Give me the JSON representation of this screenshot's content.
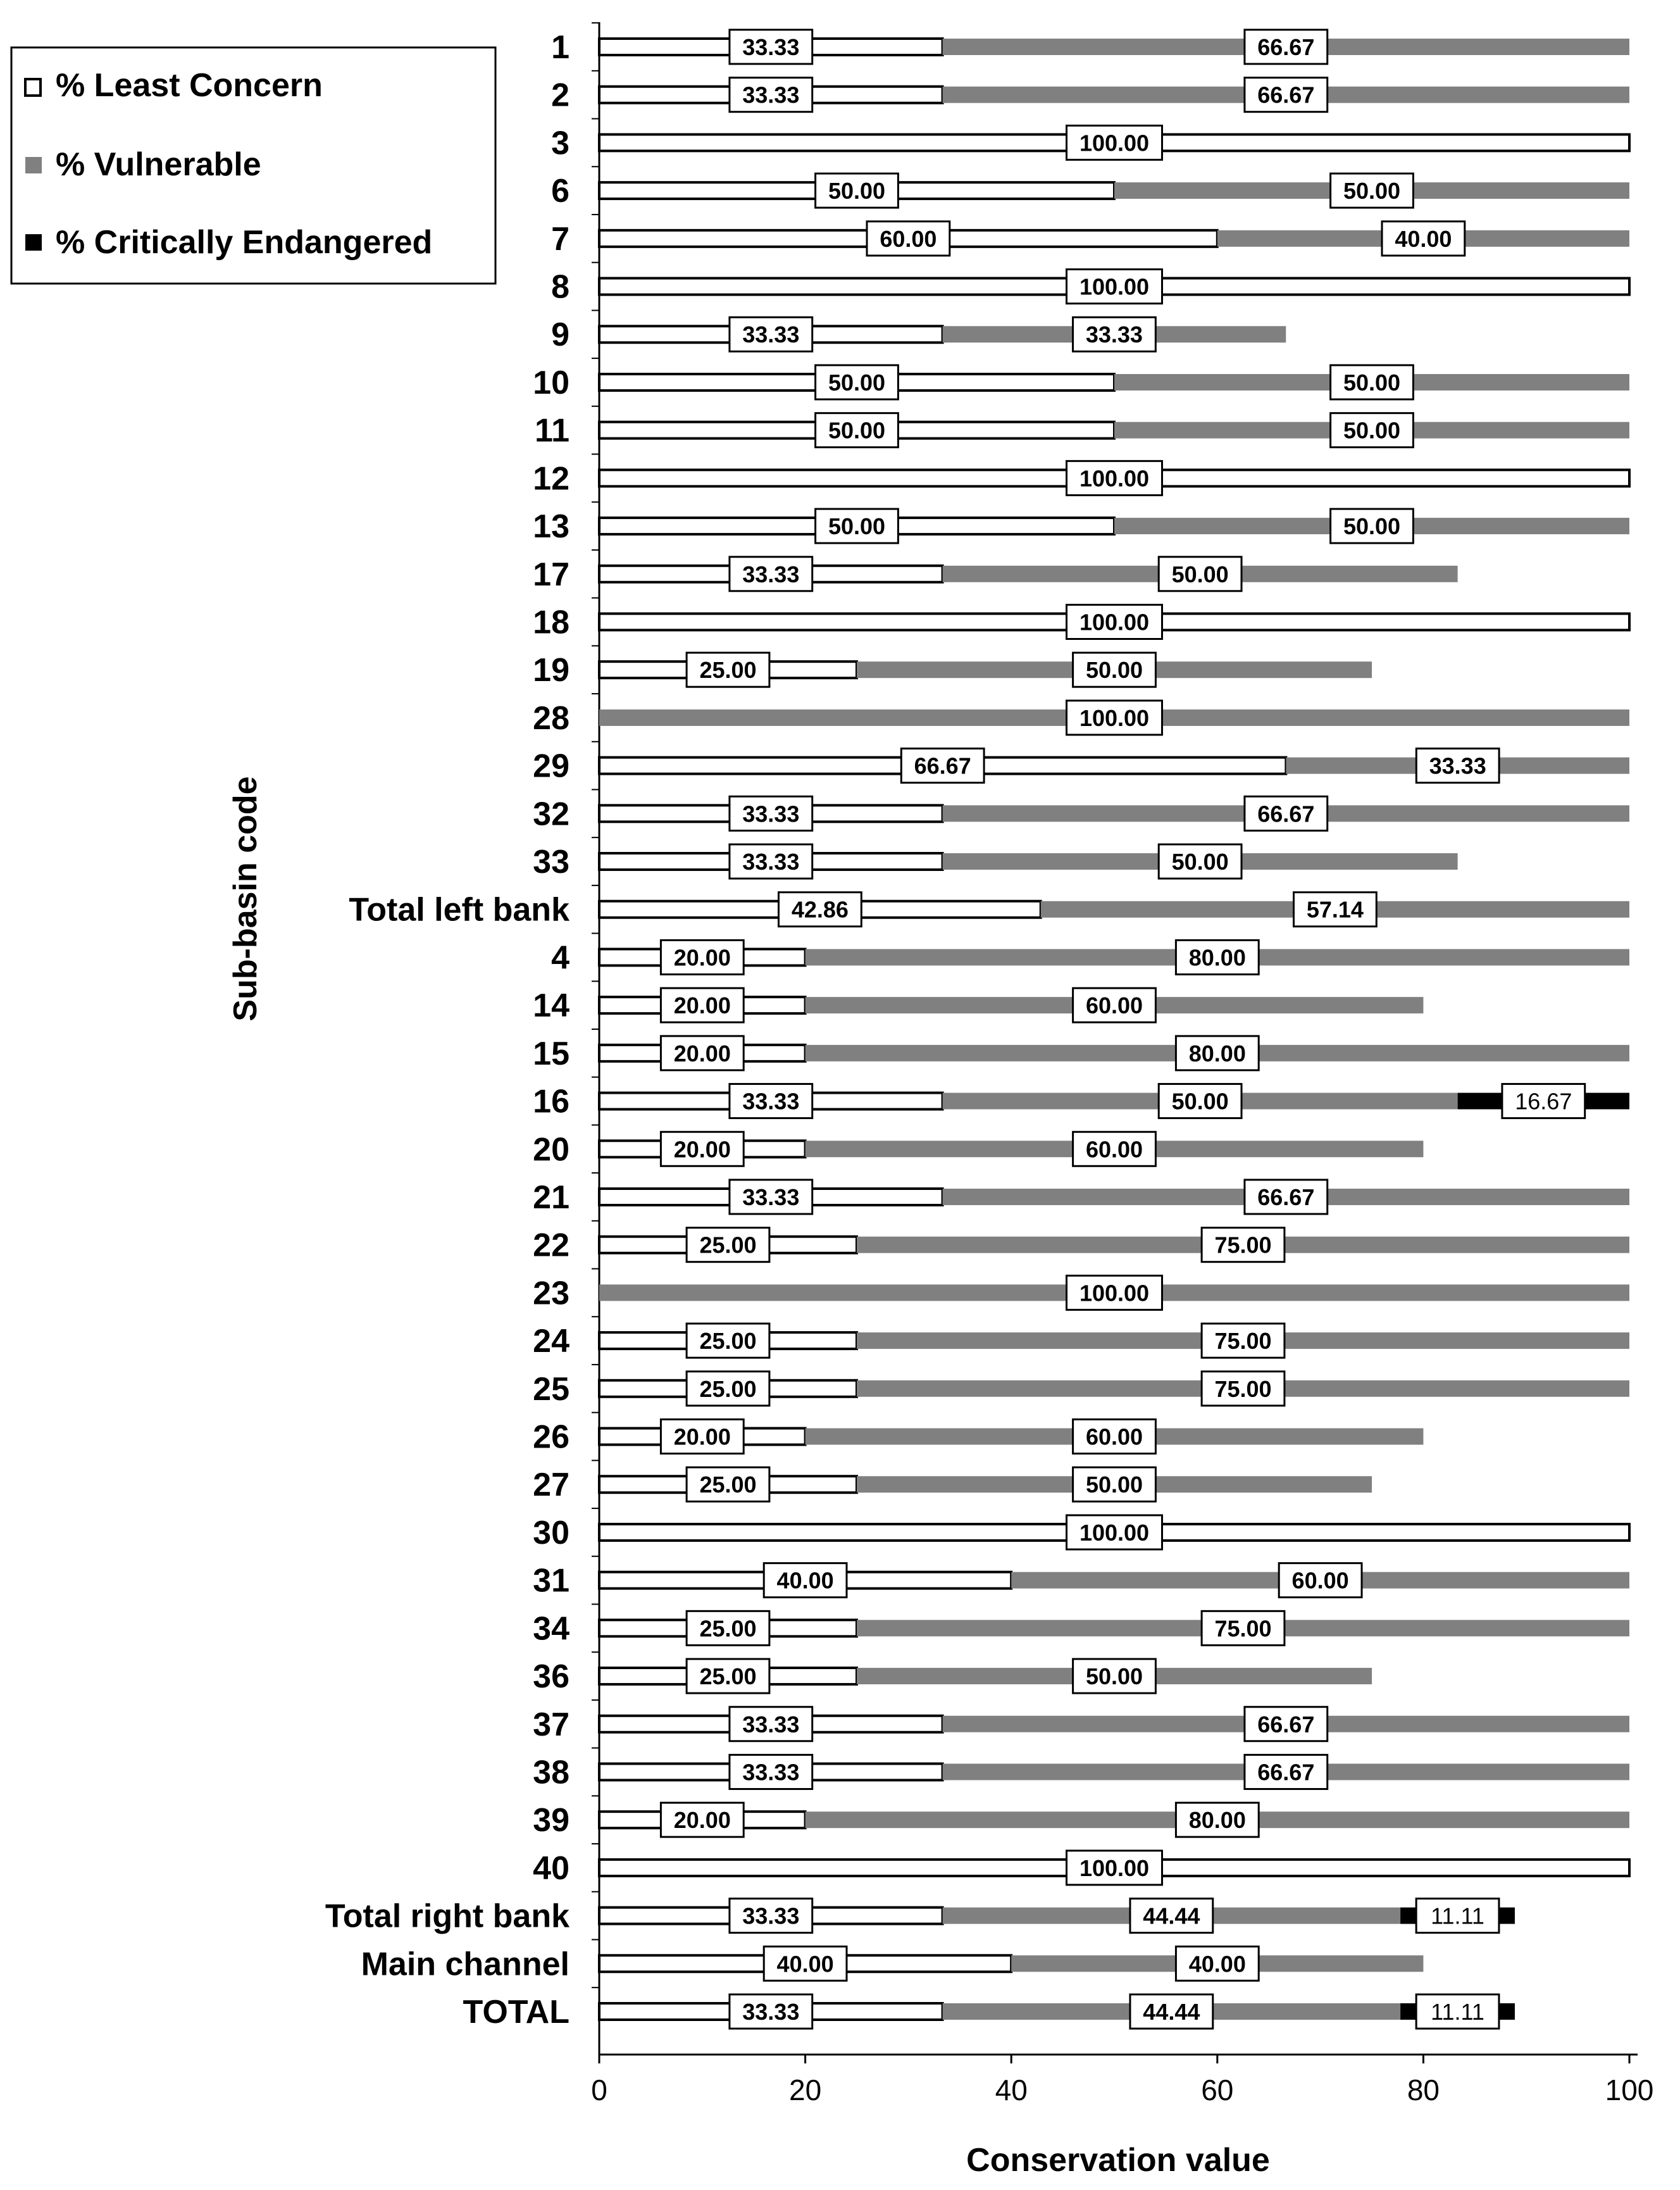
{
  "chart_data": {
    "type": "bar",
    "orientation": "horizontal",
    "stacked": true,
    "xlabel": "Conservation value",
    "ylabel": "Sub-basin code",
    "xlim": [
      0,
      100
    ],
    "xticks": [
      "0",
      "20",
      "40",
      "60",
      "80",
      "100"
    ],
    "legend_position": "top-left",
    "categories": [
      "1",
      "2",
      "3",
      "6",
      "7",
      "8",
      "9",
      "10",
      "11",
      "12",
      "13",
      "17",
      "18",
      "19",
      "28",
      "29",
      "32",
      "33",
      "Total left bank",
      "4",
      "14",
      "15",
      "16",
      "20",
      "21",
      "22",
      "23",
      "24",
      "25",
      "26",
      "27",
      "30",
      "31",
      "34",
      "36",
      "37",
      "38",
      "39",
      "40",
      "Total right bank",
      "Main channel",
      "TOTAL"
    ],
    "series": [
      {
        "name": "% Least Concern",
        "color": "#ffffff",
        "values": [
          33.33,
          33.33,
          100,
          50,
          60,
          100,
          33.33,
          50,
          50,
          100,
          50,
          33.33,
          100,
          25,
          0,
          66.67,
          33.33,
          33.33,
          42.86,
          20,
          20,
          20,
          33.33,
          20,
          33.33,
          25,
          0,
          25,
          25,
          20,
          25,
          100,
          40,
          25,
          25,
          33.33,
          33.33,
          20,
          100,
          33.33,
          40,
          33.33
        ],
        "labels": [
          "33.33",
          "33.33",
          "100.00",
          "50.00",
          "60.00",
          "100.00",
          "33.33",
          "50.00",
          "50.00",
          "100.00",
          "50.00",
          "33.33",
          "100.00",
          "25.00",
          "",
          "66.67",
          "33.33",
          "33.33",
          "42.86",
          "20.00",
          "20.00",
          "20.00",
          "33.33",
          "20.00",
          "33.33",
          "25.00",
          "",
          "25.00",
          "25.00",
          "20.00",
          "25.00",
          "100.00",
          "40.00",
          "25.00",
          "25.00",
          "33.33",
          "33.33",
          "20.00",
          "100.00",
          "33.33",
          "40.00",
          "33.33"
        ]
      },
      {
        "name": "% Vulnerable",
        "color": "#808080",
        "values": [
          66.67,
          66.67,
          0,
          50,
          40,
          0,
          33.33,
          50,
          50,
          0,
          50,
          50,
          0,
          50,
          100,
          33.33,
          66.67,
          50,
          57.14,
          80,
          60,
          80,
          50,
          60,
          66.67,
          75,
          100,
          75,
          75,
          60,
          50,
          0,
          60,
          75,
          50,
          66.67,
          66.67,
          80,
          0,
          44.44,
          40,
          44.44
        ],
        "labels": [
          "66.67",
          "66.67",
          "",
          "50.00",
          "40.00",
          "",
          "33.33",
          "50.00",
          "50.00",
          "",
          "50.00",
          "50.00",
          "",
          "50.00",
          "100.00",
          "33.33",
          "66.67",
          "50.00",
          "57.14",
          "80.00",
          "60.00",
          "80.00",
          "50.00",
          "60.00",
          "66.67",
          "75.00",
          "100.00",
          "75.00",
          "75.00",
          "60.00",
          "50.00",
          "",
          "60.00",
          "75.00",
          "50.00",
          "66.67",
          "66.67",
          "80.00",
          "",
          "44.44",
          "40.00",
          "44.44"
        ]
      },
      {
        "name": "% Critically Endangered",
        "color": "#000000",
        "values": [
          0,
          0,
          0,
          0,
          0,
          0,
          0,
          0,
          0,
          0,
          0,
          0,
          0,
          0,
          0,
          0,
          0,
          0,
          0,
          0,
          0,
          0,
          16.67,
          0,
          0,
          0,
          0,
          0,
          0,
          0,
          0,
          0,
          0,
          0,
          0,
          0,
          0,
          0,
          0,
          11.11,
          0,
          11.11
        ],
        "labels": [
          "",
          "",
          "",
          "",
          "",
          "",
          "",
          "",
          "",
          "",
          "",
          "",
          "",
          "",
          "",
          "",
          "",
          "",
          "",
          "",
          "",
          "",
          "16.67",
          "",
          "",
          "",
          "",
          "",
          "",
          "",
          "",
          "",
          "",
          "",
          "",
          "",
          "",
          "",
          "",
          "11.11",
          "",
          "11.11"
        ]
      }
    ]
  }
}
